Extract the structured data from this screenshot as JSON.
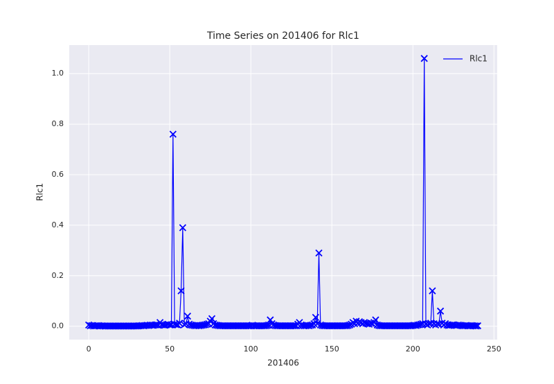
{
  "chart_data": {
    "type": "line",
    "title": "Time Series on 201406 for Rlc1",
    "x_label": "201406",
    "y_label": "Rlc1",
    "x": [
      0,
      1,
      2,
      3,
      4,
      5,
      6,
      7,
      8,
      9,
      10,
      11,
      12,
      13,
      14,
      15,
      16,
      17,
      18,
      19,
      20,
      21,
      22,
      23,
      24,
      25,
      26,
      27,
      28,
      29,
      30,
      31,
      32,
      33,
      34,
      35,
      36,
      37,
      38,
      39,
      40,
      41,
      42,
      43,
      44,
      45,
      46,
      47,
      48,
      49,
      50,
      51,
      52,
      53,
      54,
      55,
      56,
      57,
      58,
      59,
      60,
      61,
      62,
      63,
      64,
      65,
      66,
      67,
      68,
      69,
      70,
      71,
      72,
      73,
      74,
      75,
      76,
      77,
      78,
      79,
      80,
      81,
      82,
      83,
      84,
      85,
      86,
      87,
      88,
      89,
      90,
      91,
      92,
      93,
      94,
      95,
      96,
      97,
      98,
      99,
      100,
      101,
      102,
      103,
      104,
      105,
      106,
      107,
      108,
      109,
      110,
      111,
      112,
      113,
      114,
      115,
      116,
      117,
      118,
      119,
      120,
      121,
      122,
      123,
      124,
      125,
      126,
      127,
      128,
      129,
      130,
      131,
      132,
      133,
      134,
      135,
      136,
      137,
      138,
      139,
      140,
      141,
      142,
      143,
      144,
      145,
      146,
      147,
      148,
      149,
      150,
      151,
      152,
      153,
      154,
      155,
      156,
      157,
      158,
      159,
      160,
      161,
      162,
      163,
      164,
      165,
      166,
      167,
      168,
      169,
      170,
      171,
      172,
      173,
      174,
      175,
      176,
      177,
      178,
      179,
      180,
      181,
      182,
      183,
      184,
      185,
      186,
      187,
      188,
      189,
      190,
      191,
      192,
      193,
      194,
      195,
      196,
      197,
      198,
      199,
      200,
      201,
      202,
      203,
      204,
      205,
      206,
      207,
      208,
      209,
      210,
      211,
      212,
      213,
      214,
      215,
      216,
      217,
      218,
      219,
      220,
      221,
      222,
      223,
      224,
      225,
      226,
      227,
      228,
      229,
      230,
      231,
      232,
      233,
      234,
      235,
      236,
      237,
      238,
      239,
      240
    ],
    "series": [
      {
        "name": "Rlc1",
        "color": "#0000ff",
        "marker": "x",
        "values": [
          0.005,
          0.002,
          0.003,
          0.001,
          0.002,
          0.002,
          0.003,
          0.001,
          0.002,
          0.001,
          0.001,
          0.001,
          0.001,
          0.001,
          0.001,
          0.001,
          0.001,
          0.001,
          0.001,
          0.001,
          0.001,
          0.001,
          0.001,
          0.001,
          0.001,
          0.001,
          0.001,
          0.001,
          0.001,
          0.001,
          0.001,
          0.002,
          0.002,
          0.003,
          0.002,
          0.003,
          0.004,
          0.003,
          0.005,
          0.004,
          0.004,
          0.005,
          0.006,
          0.004,
          0.015,
          0.006,
          0.005,
          0.004,
          0.006,
          0.008,
          0.005,
          0.006,
          0.76,
          0.008,
          0.006,
          0.005,
          0.012,
          0.14,
          0.39,
          0.006,
          0.01,
          0.04,
          0.008,
          0.005,
          0.004,
          0.003,
          0.002,
          0.003,
          0.002,
          0.003,
          0.004,
          0.005,
          0.006,
          0.008,
          0.01,
          0.02,
          0.03,
          0.01,
          0.005,
          0.004,
          0.003,
          0.002,
          0.002,
          0.002,
          0.002,
          0.002,
          0.002,
          0.002,
          0.002,
          0.002,
          0.002,
          0.002,
          0.002,
          0.002,
          0.002,
          0.002,
          0.002,
          0.002,
          0.002,
          0.002,
          0.002,
          0.004,
          0.002,
          0.002,
          0.002,
          0.002,
          0.002,
          0.002,
          0.002,
          0.002,
          0.003,
          0.005,
          0.025,
          0.01,
          0.005,
          0.003,
          0.002,
          0.002,
          0.002,
          0.002,
          0.002,
          0.002,
          0.002,
          0.002,
          0.002,
          0.002,
          0.002,
          0.002,
          0.002,
          0.008,
          0.015,
          0.005,
          0.003,
          0.002,
          0.002,
          0.003,
          0.002,
          0.004,
          0.005,
          0.01,
          0.035,
          0.01,
          0.29,
          0.005,
          0.003,
          0.002,
          0.002,
          0.002,
          0.002,
          0.002,
          0.002,
          0.002,
          0.002,
          0.002,
          0.002,
          0.002,
          0.002,
          0.002,
          0.002,
          0.002,
          0.003,
          0.005,
          0.008,
          0.015,
          0.01,
          0.02,
          0.012,
          0.018,
          0.015,
          0.01,
          0.015,
          0.012,
          0.01,
          0.008,
          0.012,
          0.01,
          0.015,
          0.025,
          0.005,
          0.003,
          0.002,
          0.002,
          0.002,
          0.002,
          0.002,
          0.002,
          0.002,
          0.002,
          0.002,
          0.002,
          0.002,
          0.002,
          0.002,
          0.002,
          0.002,
          0.002,
          0.002,
          0.002,
          0.002,
          0.002,
          0.003,
          0.004,
          0.003,
          0.005,
          0.006,
          0.008,
          0.01,
          1.06,
          0.008,
          0.005,
          0.01,
          0.012,
          0.14,
          0.01,
          0.005,
          0.01,
          0.008,
          0.06,
          0.012,
          0.005,
          0.01,
          0.005,
          0.003,
          0.004,
          0.005,
          0.006,
          0.004,
          0.003,
          0.005,
          0.004,
          0.003,
          0.002,
          0.002,
          0.003,
          0.002,
          0.002,
          0.003,
          0.002,
          0.002,
          0.001,
          0.002
        ]
      }
    ],
    "xlim": [
      -12,
      252
    ],
    "xticks": [
      0,
      50,
      100,
      150,
      200,
      250
    ],
    "ylim": [
      -0.053,
      1.113
    ],
    "yticks": [
      {
        "value": 0,
        "label": "0.0"
      },
      0.2,
      0.4,
      0.6,
      0.8,
      {
        "value": 1,
        "label": "1.0"
      }
    ],
    "grid": true,
    "legend": "upper right"
  }
}
